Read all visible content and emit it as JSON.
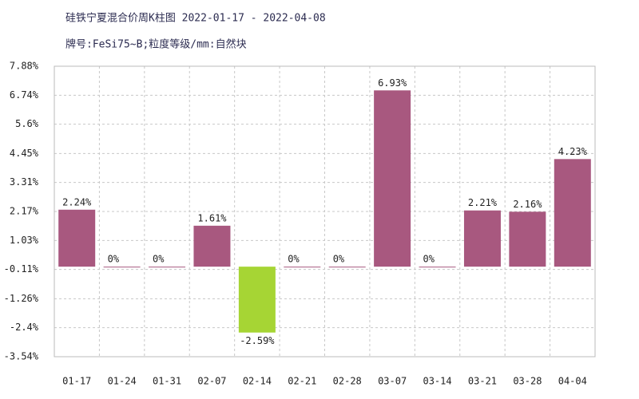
{
  "chart_data": {
    "type": "bar",
    "title": "硅铁宁夏混合价周K柱图 2022-01-17 - 2022-04-08",
    "subtitle": "牌号:FeSi75~B;粒度等级/mm:自然块",
    "categories": [
      "01-17",
      "01-24",
      "01-31",
      "02-07",
      "02-14",
      "02-21",
      "02-28",
      "03-07",
      "03-14",
      "03-21",
      "03-28",
      "04-04"
    ],
    "values": [
      2.24,
      0,
      0,
      1.61,
      -2.59,
      0,
      0,
      6.93,
      0,
      2.21,
      2.16,
      4.23
    ],
    "value_labels": [
      "2.24%",
      "0%",
      "0%",
      "1.61%",
      "-2.59%",
      "0%",
      "0%",
      "6.93%",
      "0%",
      "2.21%",
      "2.16%",
      "4.23%"
    ],
    "colors": [
      "#a8587f",
      "#a8587f",
      "#a8587f",
      "#a8587f",
      "#a6d534",
      "#a8587f",
      "#a8587f",
      "#a8587f",
      "#a8587f",
      "#a8587f",
      "#a8587f",
      "#a8587f"
    ],
    "ylim": [
      -3.54,
      7.88
    ],
    "yticks": [
      {
        "value": -3.54,
        "label": "-3.54%"
      },
      {
        "value": -2.4,
        "label": "-2.4%"
      },
      {
        "value": -1.26,
        "label": "-1.26%"
      },
      {
        "value": -0.11,
        "label": "-0.11%"
      },
      {
        "value": 1.03,
        "label": "1.03%"
      },
      {
        "value": 2.17,
        "label": "2.17%"
      },
      {
        "value": 3.31,
        "label": "3.31%"
      },
      {
        "value": 4.45,
        "label": "4.45%"
      },
      {
        "value": 5.6,
        "label": "5.6%"
      },
      {
        "value": 6.74,
        "label": "6.74%"
      },
      {
        "value": 7.88,
        "label": "7.88%"
      }
    ],
    "grid": true
  }
}
